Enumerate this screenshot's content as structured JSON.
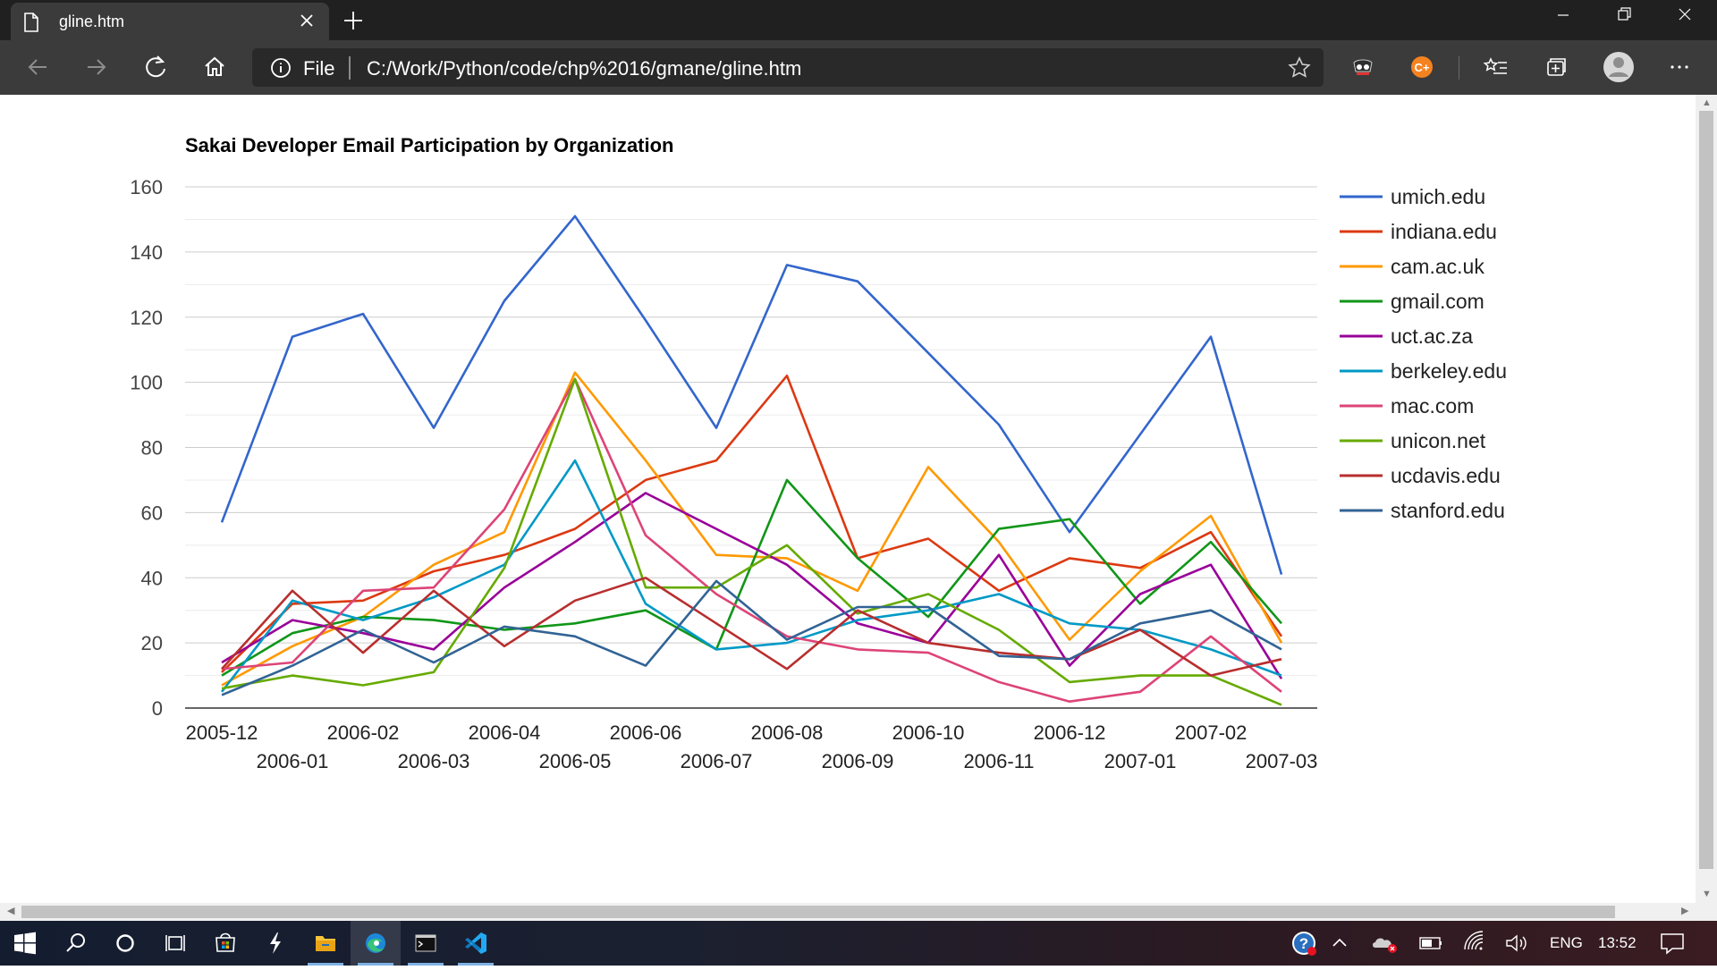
{
  "browser": {
    "tab_title": "gline.htm",
    "address_scheme": "File",
    "address_url": "C:/Work/Python/code/chp%2016/gmane/gline.htm",
    "extension_badge": "C+"
  },
  "taskbar": {
    "language": "ENG",
    "time": "13:52"
  },
  "chart_data": {
    "type": "line",
    "title": "Sakai Developer Email Participation by Organization",
    "xlabel": "",
    "ylabel": "",
    "ylim": [
      0,
      160
    ],
    "yticks": [
      "0",
      "20",
      "40",
      "60",
      "80",
      "100",
      "120",
      "140",
      "160"
    ],
    "grid": true,
    "legend_position": "right",
    "categories": [
      "2005-12",
      "2006-01",
      "2006-02",
      "2006-03",
      "2006-04",
      "2006-05",
      "2006-06",
      "2006-07",
      "2006-08",
      "2006-09",
      "2006-10",
      "2006-11",
      "2006-12",
      "2007-01",
      "2007-02",
      "2007-03"
    ],
    "series": [
      {
        "name": "umich.edu",
        "color": "#3366cc",
        "values": [
          57,
          114,
          121,
          86,
          125,
          151,
          119,
          86,
          136,
          131,
          109,
          87,
          54,
          84,
          114,
          41
        ]
      },
      {
        "name": "indiana.edu",
        "color": "#dc3912",
        "values": [
          11,
          32,
          33,
          42,
          47,
          55,
          70,
          76,
          102,
          46,
          52,
          36,
          46,
          43,
          54,
          22
        ]
      },
      {
        "name": "cam.ac.uk",
        "color": "#ff9900",
        "values": [
          7,
          19,
          28,
          44,
          54,
          103,
          76,
          47,
          46,
          36,
          74,
          51,
          21,
          42,
          59,
          20
        ]
      },
      {
        "name": "gmail.com",
        "color": "#109618",
        "values": [
          10,
          23,
          28,
          27,
          24,
          26,
          30,
          18,
          70,
          46,
          28,
          55,
          58,
          32,
          51,
          26
        ]
      },
      {
        "name": "uct.ac.za",
        "color": "#990099",
        "values": [
          14,
          27,
          23,
          18,
          37,
          51,
          66,
          55,
          44,
          26,
          20,
          47,
          13,
          35,
          44,
          9
        ]
      },
      {
        "name": "berkeley.edu",
        "color": "#0099c6",
        "values": [
          5,
          33,
          27,
          34,
          44,
          76,
          32,
          18,
          20,
          27,
          30,
          35,
          26,
          24,
          18,
          10
        ]
      },
      {
        "name": "mac.com",
        "color": "#dd4477",
        "values": [
          12,
          14,
          36,
          37,
          61,
          101,
          53,
          35,
          22,
          18,
          17,
          8,
          2,
          5,
          22,
          5
        ]
      },
      {
        "name": "unicon.net",
        "color": "#66aa00",
        "values": [
          6,
          10,
          7,
          11,
          43,
          101,
          37,
          37,
          50,
          29,
          35,
          24,
          8,
          10,
          10,
          1
        ]
      },
      {
        "name": "ucdavis.edu",
        "color": "#b82e2e",
        "values": [
          12,
          36,
          17,
          36,
          19,
          33,
          40,
          26,
          12,
          30,
          20,
          17,
          15,
          24,
          10,
          15
        ]
      },
      {
        "name": "stanford.edu",
        "color": "#316395",
        "values": [
          4,
          13,
          24,
          14,
          25,
          22,
          13,
          39,
          21,
          31,
          31,
          16,
          15,
          26,
          30,
          18
        ]
      }
    ]
  }
}
